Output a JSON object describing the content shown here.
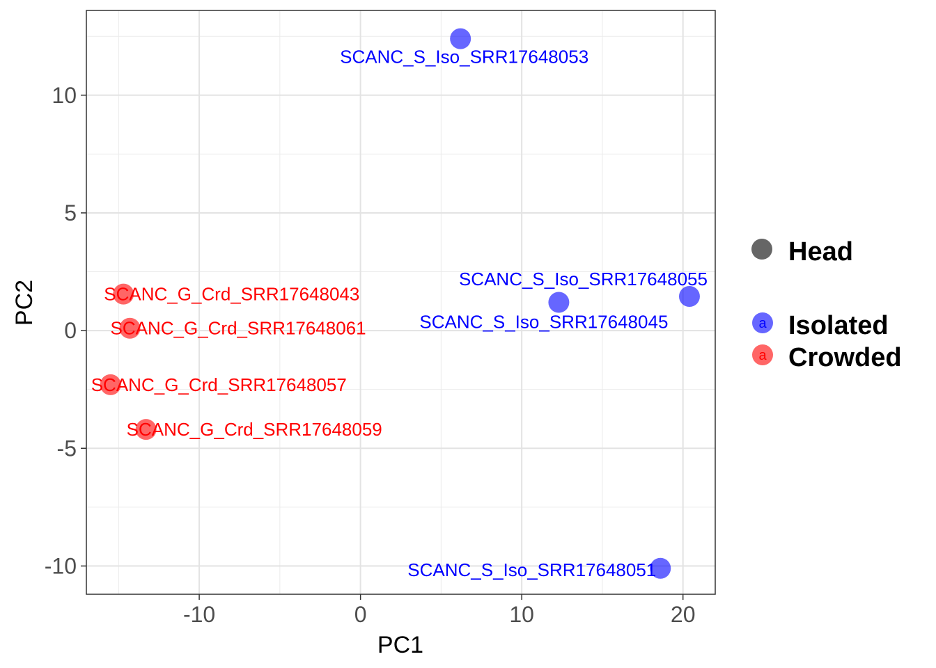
{
  "chart_data": {
    "type": "scatter",
    "title": "",
    "xlabel": "PC1",
    "ylabel": "PC2",
    "xlim": [
      -17.0,
      22.0
    ],
    "ylim": [
      -11.2,
      13.6
    ],
    "x_ticks": [
      -10,
      0,
      10,
      20
    ],
    "y_ticks": [
      -10,
      -5,
      0,
      5,
      10
    ],
    "x_tick_labels": [
      "-10",
      "0",
      "10",
      "20"
    ],
    "y_tick_labels": [
      "-10",
      "-5",
      "0",
      "5",
      "10"
    ],
    "grid": true,
    "legend_position": "right",
    "legend": [
      {
        "label": "Head",
        "kind": "shape",
        "color": "#666666"
      },
      {
        "label": "Isolated",
        "kind": "color",
        "color": "#0000FF"
      },
      {
        "label": "Crowded",
        "kind": "color",
        "color": "#FF0000"
      }
    ],
    "legend_key_glyph": "a",
    "series": [
      {
        "name": "Isolated",
        "color": "#0000FF",
        "points": [
          {
            "label": "SCANC_S_Iso_SRR17648053",
            "x": 6.2,
            "y": 12.4,
            "label_anchor": "end-below"
          },
          {
            "label": "SCANC_S_Iso_SRR17648055",
            "x": 20.4,
            "y": 1.45,
            "label_anchor": "end-above"
          },
          {
            "label": "SCANC_S_Iso_SRR17648045",
            "x": 12.3,
            "y": 1.2,
            "label_anchor": "start-below"
          },
          {
            "label": "SCANC_S_Iso_SRR17648051",
            "x": 18.6,
            "y": -10.1,
            "label_anchor": "end"
          }
        ]
      },
      {
        "name": "Crowded",
        "color": "#FF0000",
        "points": [
          {
            "label": "SCANC_G_Crd_SRR17648043",
            "x": -14.7,
            "y": 1.55,
            "label_anchor": "start"
          },
          {
            "label": "SCANC_G_Crd_SRR17648061",
            "x": -14.3,
            "y": 0.1,
            "label_anchor": "start"
          },
          {
            "label": "SCANC_G_Crd_SRR17648057",
            "x": -15.5,
            "y": -2.3,
            "label_anchor": "start"
          },
          {
            "label": "SCANC_G_Crd_SRR17648059",
            "x": -13.3,
            "y": -4.2,
            "label_anchor": "start"
          }
        ]
      }
    ]
  }
}
